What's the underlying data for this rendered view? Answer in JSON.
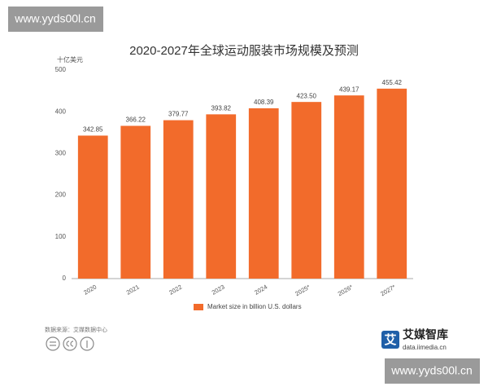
{
  "chart_data": {
    "type": "bar",
    "title": "2020-2027年全球运动服装市场规模及预测",
    "y_label": "十亿美元",
    "categories": [
      "2020",
      "2021",
      "2022",
      "2023",
      "2024",
      "2025*",
      "2026*",
      "2027*"
    ],
    "series": [
      {
        "name": "Market size in billion U.S. dollars",
        "color": "#f26b2b",
        "values": [
          342.85,
          366.22,
          379.77,
          393.82,
          408.39,
          423.5,
          439.17,
          455.42
        ],
        "value_labels": [
          "342.85",
          "366.22",
          "379.77",
          "393.82",
          "408.39",
          "423.50",
          "439.17",
          "455.42"
        ]
      }
    ],
    "ylim": [
      0,
      500
    ],
    "yticks": [
      0,
      100,
      200,
      300,
      400,
      500
    ],
    "grid": false,
    "legend": "bottom",
    "source": "数据来源：艾媒数据中心"
  },
  "logo": {
    "mark": "艾",
    "name": "艾媒智库",
    "url": "data.iimedia.cn"
  },
  "watermarks": [
    "www.yyds00l.cn",
    "www.yyds00l.cn"
  ]
}
